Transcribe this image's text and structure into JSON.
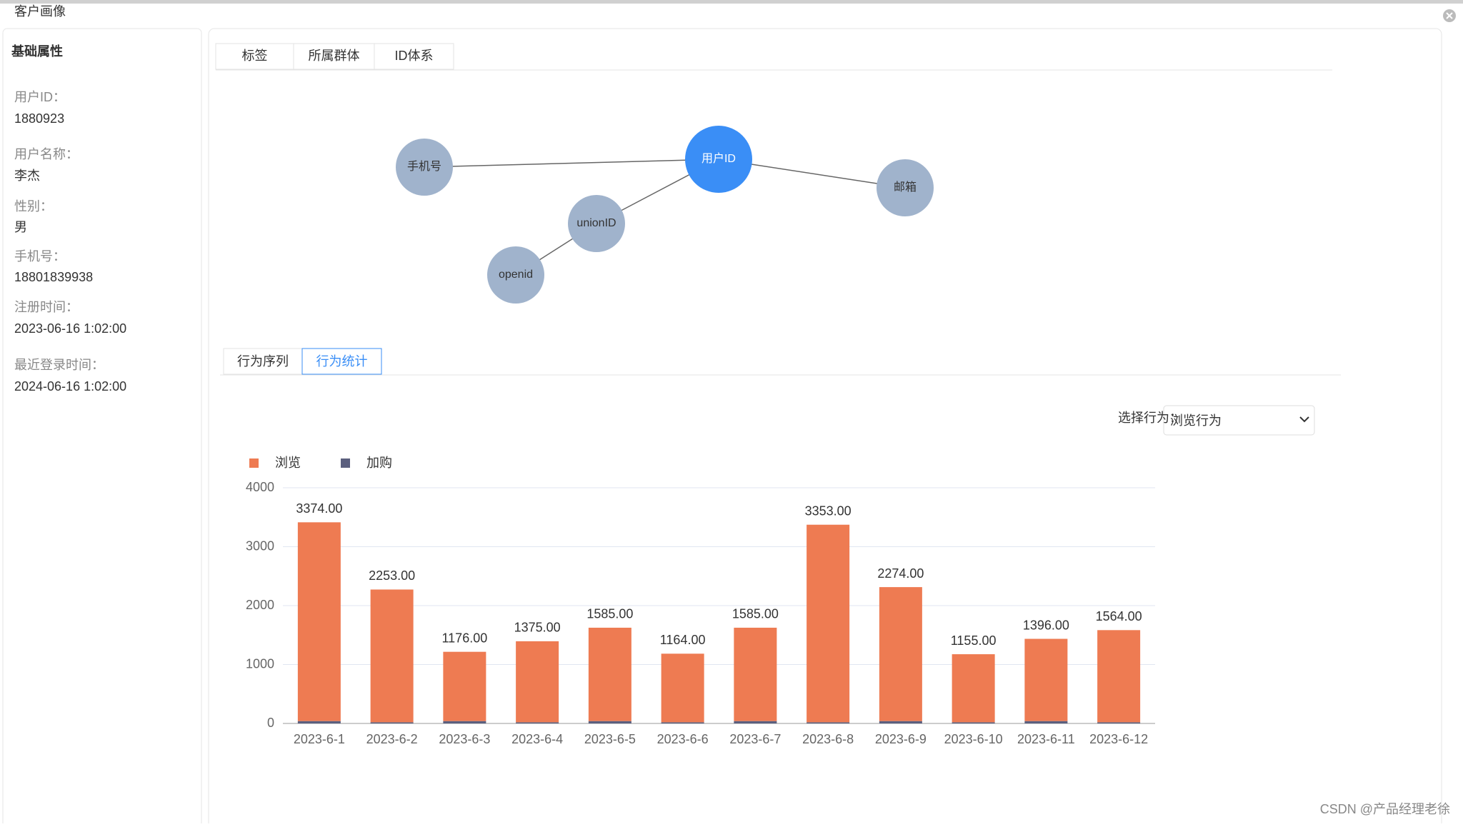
{
  "header": {
    "title": "客户画像"
  },
  "sidebar": {
    "title": "基础属性",
    "fields": [
      {
        "label": "用户ID：",
        "value": "1880923"
      },
      {
        "label": "用户名称：",
        "value": "李杰"
      },
      {
        "label": "性别：",
        "value": "男"
      },
      {
        "label": "手机号：",
        "value": "18801839938"
      },
      {
        "label": "注册时间：",
        "value": "2023-06-16  1:02:00"
      },
      {
        "label": "最近登录时间：",
        "value": "2024-06-16  1:02:00"
      }
    ]
  },
  "top_tabs": [
    "标签",
    "所属群体",
    "ID体系"
  ],
  "graph": {
    "nodes": [
      {
        "label": "手机号"
      },
      {
        "label": "用户ID"
      },
      {
        "label": "邮箱"
      },
      {
        "label": "unionID"
      },
      {
        "label": "openid"
      }
    ]
  },
  "behavior_tabs": [
    "行为序列",
    "行为统计"
  ],
  "selector": {
    "label": "选择行为：",
    "value": "浏览行为"
  },
  "watermark": "CSDN @产品经理老徐",
  "chart_data": {
    "type": "bar",
    "stacked": true,
    "categories": [
      "2023-6-1",
      "2023-6-2",
      "2023-6-3",
      "2023-6-4",
      "2023-6-5",
      "2023-6-6",
      "2023-6-7",
      "2023-6-8",
      "2023-6-9",
      "2023-6-10",
      "2023-6-11",
      "2023-6-12"
    ],
    "series": [
      {
        "name": "浏览",
        "color": "#ee7b52",
        "values": [
          3374,
          2253,
          1176,
          1375,
          1585,
          1164,
          1585,
          3353,
          2274,
          1155,
          1396,
          1564
        ],
        "value_labels": [
          "3374.00",
          "2253.00",
          "1176.00",
          "1375.00",
          "1585.00",
          "1164.00",
          "1585.00",
          "3353.00",
          "2274.00",
          "1155.00",
          "1396.00",
          "1564.00"
        ]
      },
      {
        "name": "加购",
        "color": "#5b5f7e",
        "values": [
          40,
          20,
          40,
          20,
          40,
          20,
          40,
          20,
          40,
          20,
          40,
          20
        ]
      }
    ],
    "ylim": [
      0,
      4000
    ],
    "yticks": [
      0,
      1000,
      2000,
      3000,
      4000
    ],
    "grid": true
  }
}
